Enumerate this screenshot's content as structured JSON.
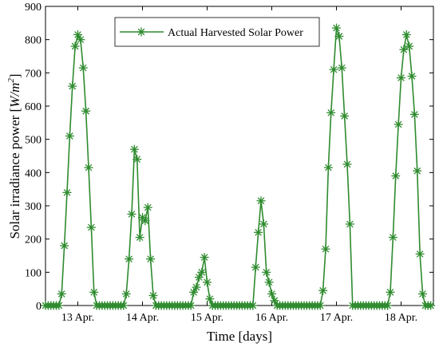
{
  "chart_data": {
    "type": "line",
    "xlabel": "Time [days]",
    "ylabel_prefix": "Solar irradiance power [",
    "ylabel_unit": "W/m",
    "ylabel_exp": "2",
    "ylabel_suffix": "]",
    "ylim": [
      0,
      900
    ],
    "yticks": [
      0,
      100,
      200,
      300,
      400,
      500,
      600,
      700,
      800,
      900
    ],
    "xlim": [
      0,
      144
    ],
    "xticks": [
      {
        "x": 12,
        "label": "13 Apr."
      },
      {
        "x": 36,
        "label": "14 Apr."
      },
      {
        "x": 60,
        "label": "15 Apr."
      },
      {
        "x": 84,
        "label": "16 Apr."
      },
      {
        "x": 108,
        "label": "17 Apr."
      },
      {
        "x": 132,
        "label": "18 Apr."
      }
    ],
    "grid": false,
    "legend_position": "top-center",
    "series": [
      {
        "name": "Actual Harvested Solar Power",
        "color": "#2e8b2e",
        "marker": "asterisk",
        "x": [
          0,
          1,
          2,
          3,
          4,
          5,
          6,
          7,
          8,
          9,
          10,
          11,
          12,
          13,
          14,
          15,
          16,
          17,
          18,
          19,
          20,
          21,
          22,
          23,
          24,
          25,
          26,
          27,
          28,
          29,
          30,
          31,
          32,
          33,
          34,
          35,
          36,
          37,
          38,
          39,
          40,
          41,
          42,
          43,
          44,
          45,
          46,
          47,
          48,
          49,
          50,
          51,
          52,
          53,
          54,
          55,
          56,
          57,
          58,
          59,
          60,
          61,
          62,
          63,
          64,
          65,
          66,
          67,
          68,
          69,
          70,
          71,
          72,
          73,
          74,
          75,
          76,
          77,
          78,
          79,
          80,
          81,
          82,
          83,
          84,
          85,
          86,
          87,
          88,
          89,
          90,
          91,
          92,
          93,
          94,
          95,
          96,
          97,
          98,
          99,
          100,
          101,
          102,
          103,
          104,
          105,
          106,
          107,
          108,
          109,
          110,
          111,
          112,
          113,
          114,
          115,
          116,
          117,
          118,
          119,
          120,
          121,
          122,
          123,
          124,
          125,
          126,
          127,
          128,
          129,
          130,
          131,
          132,
          133,
          134,
          135,
          136,
          137,
          138,
          139,
          140,
          141,
          142,
          143
        ],
        "values": [
          0,
          0,
          0,
          0,
          0,
          0,
          35,
          180,
          340,
          510,
          660,
          780,
          815,
          800,
          715,
          585,
          415,
          235,
          40,
          0,
          0,
          0,
          0,
          0,
          0,
          0,
          0,
          0,
          0,
          0,
          35,
          140,
          275,
          470,
          440,
          205,
          265,
          255,
          295,
          140,
          30,
          0,
          0,
          0,
          0,
          0,
          0,
          0,
          0,
          0,
          0,
          0,
          0,
          0,
          0,
          40,
          55,
          85,
          100,
          145,
          70,
          20,
          0,
          0,
          0,
          0,
          0,
          0,
          0,
          0,
          0,
          0,
          0,
          0,
          0,
          0,
          0,
          0,
          115,
          220,
          315,
          245,
          100,
          70,
          35,
          15,
          0,
          0,
          0,
          0,
          0,
          0,
          0,
          0,
          0,
          0,
          0,
          0,
          0,
          0,
          0,
          0,
          0,
          45,
          170,
          415,
          580,
          710,
          835,
          810,
          715,
          570,
          425,
          245,
          0,
          0,
          0,
          0,
          0,
          0,
          0,
          0,
          0,
          0,
          0,
          0,
          0,
          0,
          40,
          205,
          390,
          545,
          685,
          770,
          815,
          780,
          690,
          575,
          405,
          155,
          35,
          0,
          0,
          0
        ]
      }
    ]
  }
}
